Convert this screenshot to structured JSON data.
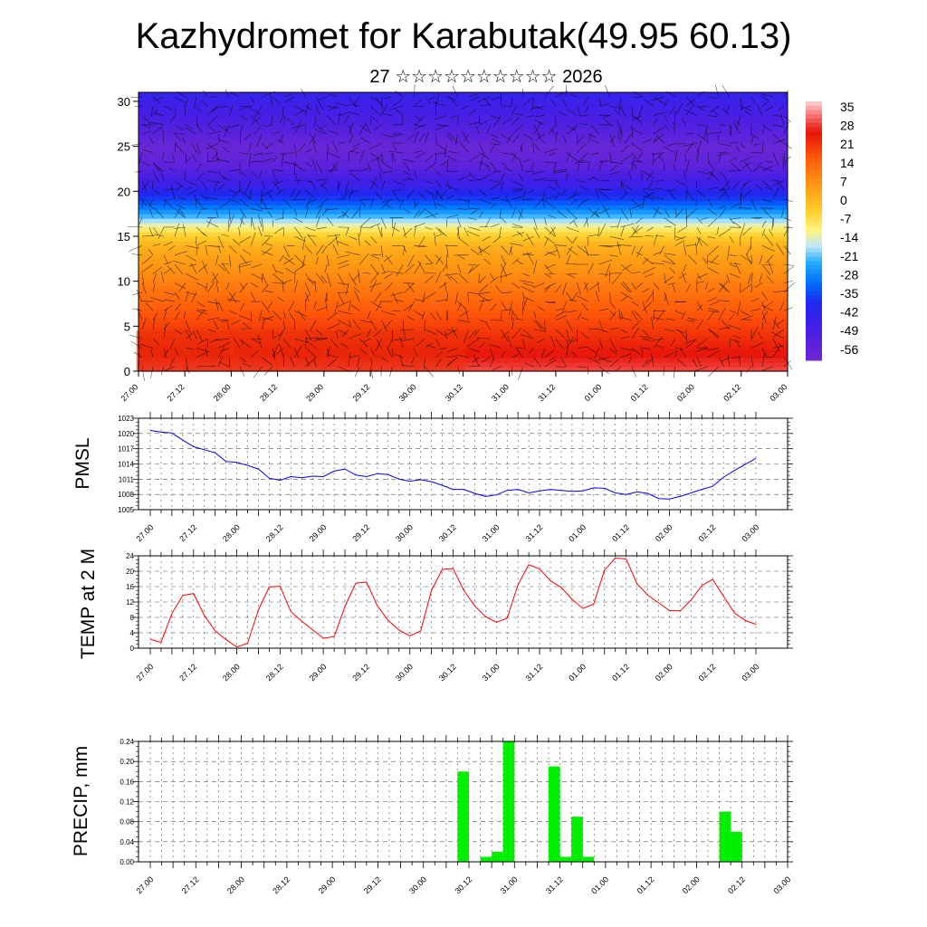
{
  "title": "Kazhydromet for Karabutak(49.95 60.13)",
  "subtitle": "27 ☆☆☆☆☆☆☆☆☆☆ 2026",
  "x_tick_labels": [
    "27.00",
    "27.12",
    "28.00",
    "28.12",
    "29.00",
    "29.12",
    "30.00",
    "30.12",
    "31.00",
    "31.12",
    "01.00",
    "01.12",
    "02.00",
    "02.12",
    "03.00"
  ],
  "chart_data": [
    {
      "type": "heatmap",
      "yticks": [
        0,
        5,
        10,
        15,
        20,
        25,
        30
      ],
      "ylim": [
        0,
        31
      ],
      "colorbar_ticks": [
        35,
        28,
        21,
        14,
        7,
        0,
        -7,
        -14,
        -21,
        -28,
        -35,
        -42,
        -49,
        -56
      ],
      "vlim": [
        -60,
        38
      ],
      "profile_levels": [
        0,
        2,
        5,
        8,
        11,
        14,
        15.5,
        17,
        19,
        21,
        23,
        25,
        27,
        31
      ],
      "profile_temps": [
        30,
        26,
        20,
        14,
        8,
        2,
        -6,
        -20,
        -35,
        -47,
        -55,
        -58,
        -52,
        -44
      ]
    },
    {
      "type": "line",
      "ylabel": "PMSL",
      "yticks": [
        1005,
        1008,
        1011,
        1014,
        1017,
        1020,
        1023
      ],
      "ylim": [
        1005,
        1023
      ],
      "color": "#0000ff",
      "x_hours": [
        0,
        6,
        12,
        18,
        24,
        30,
        36,
        42,
        48,
        54,
        60,
        66,
        72,
        78,
        84,
        90,
        96,
        102,
        108,
        114,
        120,
        126,
        132,
        138,
        144,
        150,
        156,
        162,
        168,
        174,
        180,
        186,
        192,
        198,
        204,
        210,
        216,
        222,
        228,
        234,
        240,
        246,
        252,
        258,
        264,
        270,
        276,
        282,
        288,
        294,
        300,
        306,
        312,
        318,
        324,
        330,
        336
      ],
      "values": [
        1020.6,
        1020.3,
        1020.1,
        1018.7,
        1017.4,
        1016.8,
        1016.2,
        1014.5,
        1014.3,
        1013.7,
        1013.0,
        1011.2,
        1010.8,
        1011.5,
        1011.3,
        1011.6,
        1011.5,
        1012.6,
        1013.0,
        1011.8,
        1011.5,
        1012.1,
        1011.9,
        1011.0,
        1010.6,
        1010.9,
        1010.5,
        1009.8,
        1009.0,
        1009.0,
        1008.2,
        1007.6,
        1007.9,
        1008.8,
        1009.0,
        1008.3,
        1008.7,
        1009.0,
        1008.8,
        1008.6,
        1008.7,
        1009.3,
        1009.2,
        1008.3,
        1008.0,
        1008.5,
        1008.2,
        1007.2,
        1007.1,
        1007.6,
        1008.3,
        1009.0,
        1009.6,
        1011.4,
        1012.7,
        1013.9,
        1015.1
      ]
    },
    {
      "type": "line",
      "ylabel": "TEMP at 2 M",
      "yticks": [
        0,
        4,
        8,
        12,
        16,
        20,
        24
      ],
      "ylim": [
        0,
        24
      ],
      "color": "#ff0000",
      "x_hours": [
        0,
        6,
        12,
        18,
        24,
        30,
        36,
        42,
        48,
        54,
        60,
        66,
        72,
        78,
        84,
        90,
        96,
        102,
        108,
        114,
        120,
        126,
        132,
        138,
        144,
        150,
        156,
        162,
        168,
        174,
        180,
        186,
        192,
        198,
        204,
        210,
        216,
        222,
        228,
        234,
        240,
        246,
        252,
        258,
        264,
        270,
        276,
        282,
        288,
        294,
        300,
        306,
        312,
        318,
        324,
        330,
        336
      ],
      "values": [
        2.3,
        1.5,
        9,
        13.7,
        14.2,
        8.5,
        4.5,
        2.2,
        0.3,
        1.3,
        10,
        15.9,
        16.1,
        9.5,
        7,
        4.8,
        2.6,
        3,
        10.8,
        16.9,
        17.2,
        11,
        7.2,
        4.7,
        3.2,
        4.5,
        15,
        20.5,
        20.7,
        15,
        11,
        8.2,
        6.7,
        7.8,
        16.5,
        21.7,
        20.6,
        17.5,
        15.8,
        12.7,
        10.3,
        11.5,
        20.3,
        23.4,
        23.2,
        16.8,
        13.8,
        11.8,
        9.8,
        9.7,
        12.5,
        16.3,
        17.9,
        13.5,
        9.2,
        7.2,
        6.2
      ]
    },
    {
      "type": "bar",
      "ylabel": "PRECIP, mm",
      "yticks": [
        0.0,
        0.04,
        0.08,
        0.12,
        0.16,
        0.2,
        0.24
      ],
      "ylim": [
        0,
        0.24
      ],
      "color": "#00ee00",
      "bar_start_hours": [
        162,
        174,
        180,
        186,
        210,
        216,
        222,
        228,
        300,
        306
      ],
      "bar_values": [
        0.18,
        0.01,
        0.02,
        0.24,
        0.19,
        0.01,
        0.09,
        0.01,
        0.1,
        0.06
      ]
    }
  ]
}
